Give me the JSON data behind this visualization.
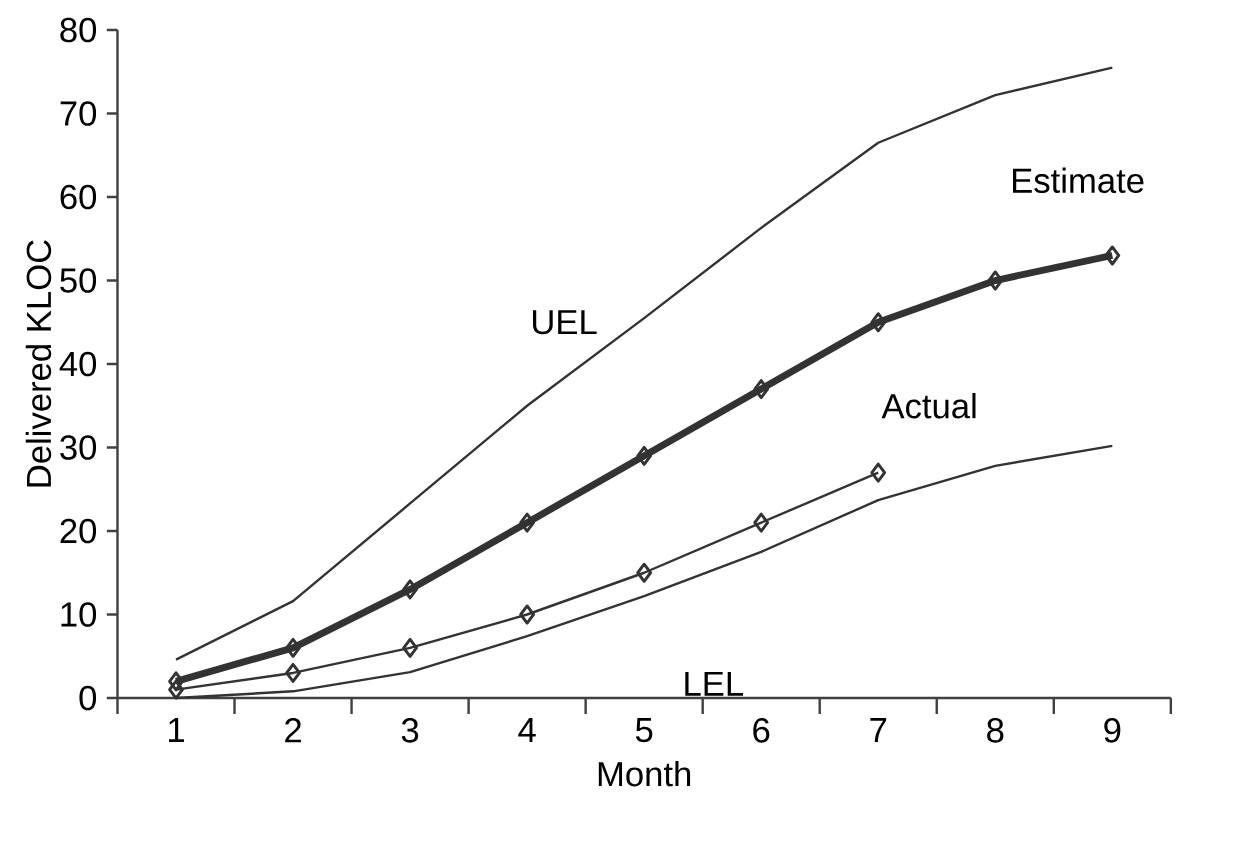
{
  "chart_data": {
    "type": "line",
    "xlabel": "Month",
    "ylabel": "Delivered KLOC",
    "categories": [
      "1",
      "2",
      "3",
      "4",
      "5",
      "6",
      "7",
      "8",
      "9"
    ],
    "series": [
      {
        "name": "UEL",
        "color": "#333333",
        "marker": "none",
        "values": [
          4.6,
          11.6,
          23.3,
          35,
          45.5,
          56.3,
          66.5,
          72.2,
          75.5
        ]
      },
      {
        "name": "Estimate",
        "color": "#333333",
        "marker": "diamond",
        "values": [
          2,
          6,
          13,
          21,
          29,
          37,
          45,
          50,
          53
        ]
      },
      {
        "name": "Actual",
        "color": "#333333",
        "marker": "diamond",
        "values": [
          1,
          3,
          6,
          10,
          15,
          21,
          27,
          null,
          null
        ]
      },
      {
        "name": "LEL",
        "color": "#333333",
        "marker": "none",
        "values": [
          0,
          0.8,
          3.1,
          7.4,
          12.2,
          17.5,
          23.7,
          27.8,
          30.2
        ]
      }
    ],
    "ylim": [
      0,
      80
    ],
    "yticks": [
      0,
      10,
      20,
      30,
      40,
      50,
      60,
      70,
      80
    ],
    "grid": false,
    "legend": false
  }
}
